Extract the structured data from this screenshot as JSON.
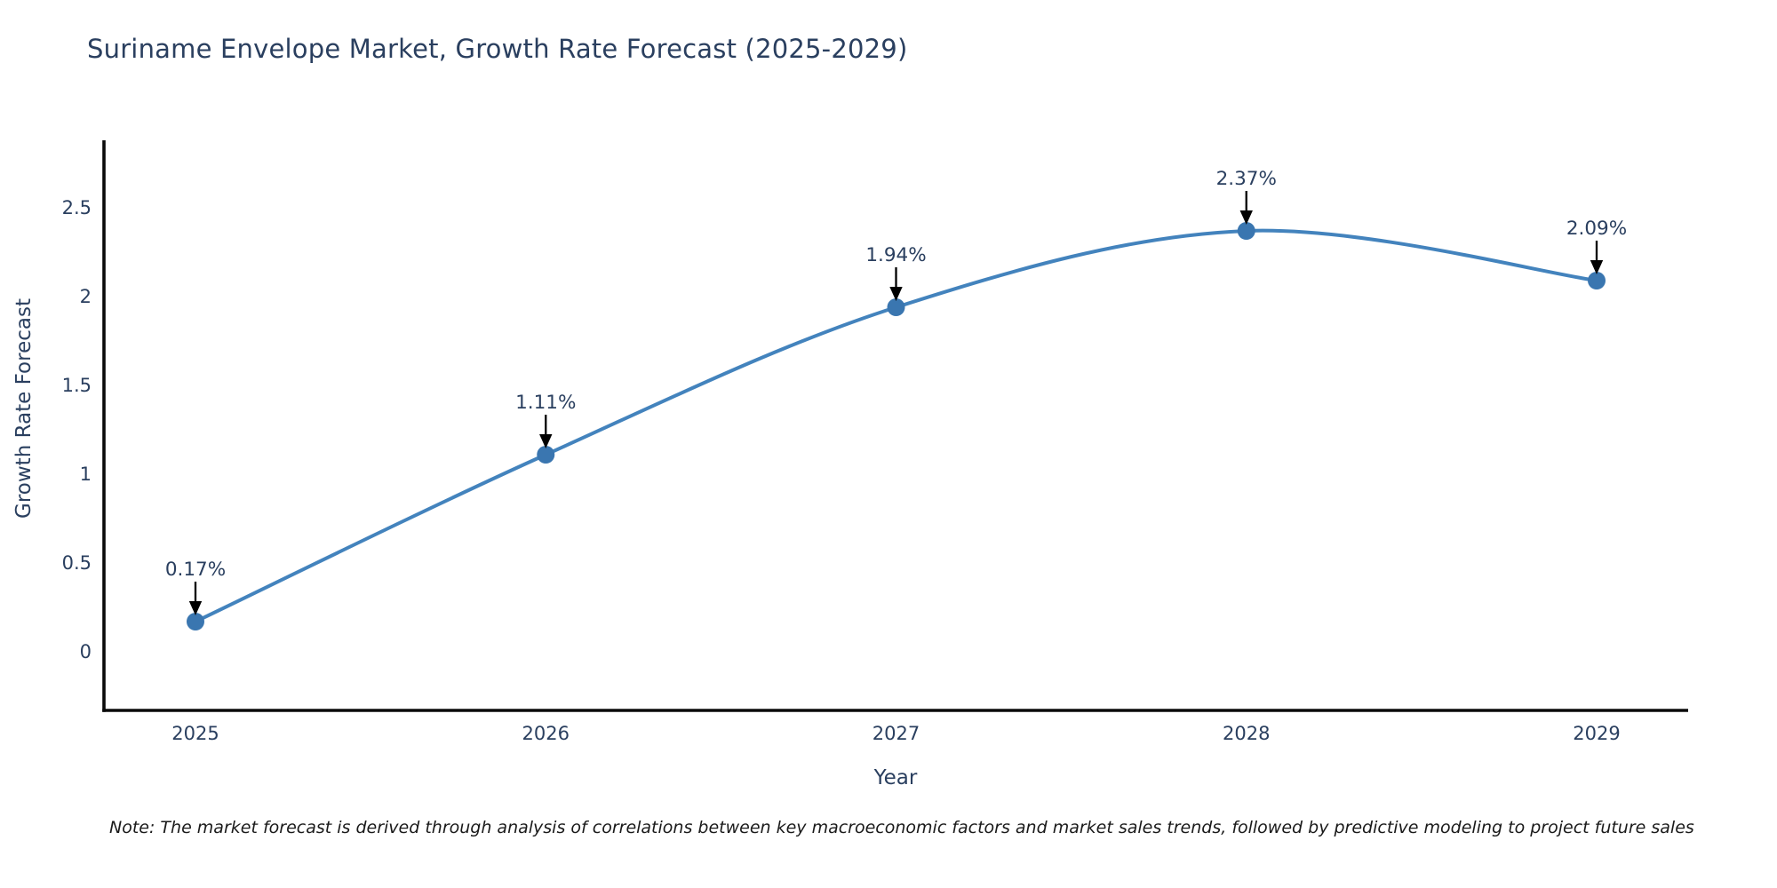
{
  "chart_data": {
    "type": "line",
    "title": "Suriname Envelope Market, Growth Rate Forecast (2025-2029)",
    "xlabel": "Year",
    "ylabel": "Growth Rate Forecast",
    "x": [
      2025,
      2026,
      2027,
      2028,
      2029
    ],
    "x_tick_labels": [
      "2025",
      "2026",
      "2027",
      "2028",
      "2029"
    ],
    "values": [
      0.17,
      1.11,
      1.94,
      2.37,
      2.09
    ],
    "point_labels": [
      "0.17%",
      "1.11%",
      "1.94%",
      "2.37%",
      "2.09%"
    ],
    "y_ticks": [
      {
        "value": 0,
        "label": "0"
      },
      {
        "value": 0.5,
        "label": "0.5"
      },
      {
        "value": 1,
        "label": "1"
      },
      {
        "value": 1.5,
        "label": "1.5"
      },
      {
        "value": 2,
        "label": "2"
      },
      {
        "value": 2.5,
        "label": "2.5"
      }
    ],
    "ylim": [
      -0.33,
      2.88
    ],
    "xlim": [
      2024.74,
      2029.26
    ],
    "grid": false,
    "legend": "none",
    "line_shape": "spline",
    "colors": {
      "line": "#4383bd",
      "marker": "#3a76b0",
      "arrow": "#000000",
      "axis": "#0a0a0a",
      "text": "#2a3f5f",
      "note_text": "#1a1a1a",
      "background": "#ffffff"
    },
    "note": "Note: The market forecast is derived through analysis of correlations between key macroeconomic factors and market sales trends, followed by predictive modeling to project future sales"
  }
}
